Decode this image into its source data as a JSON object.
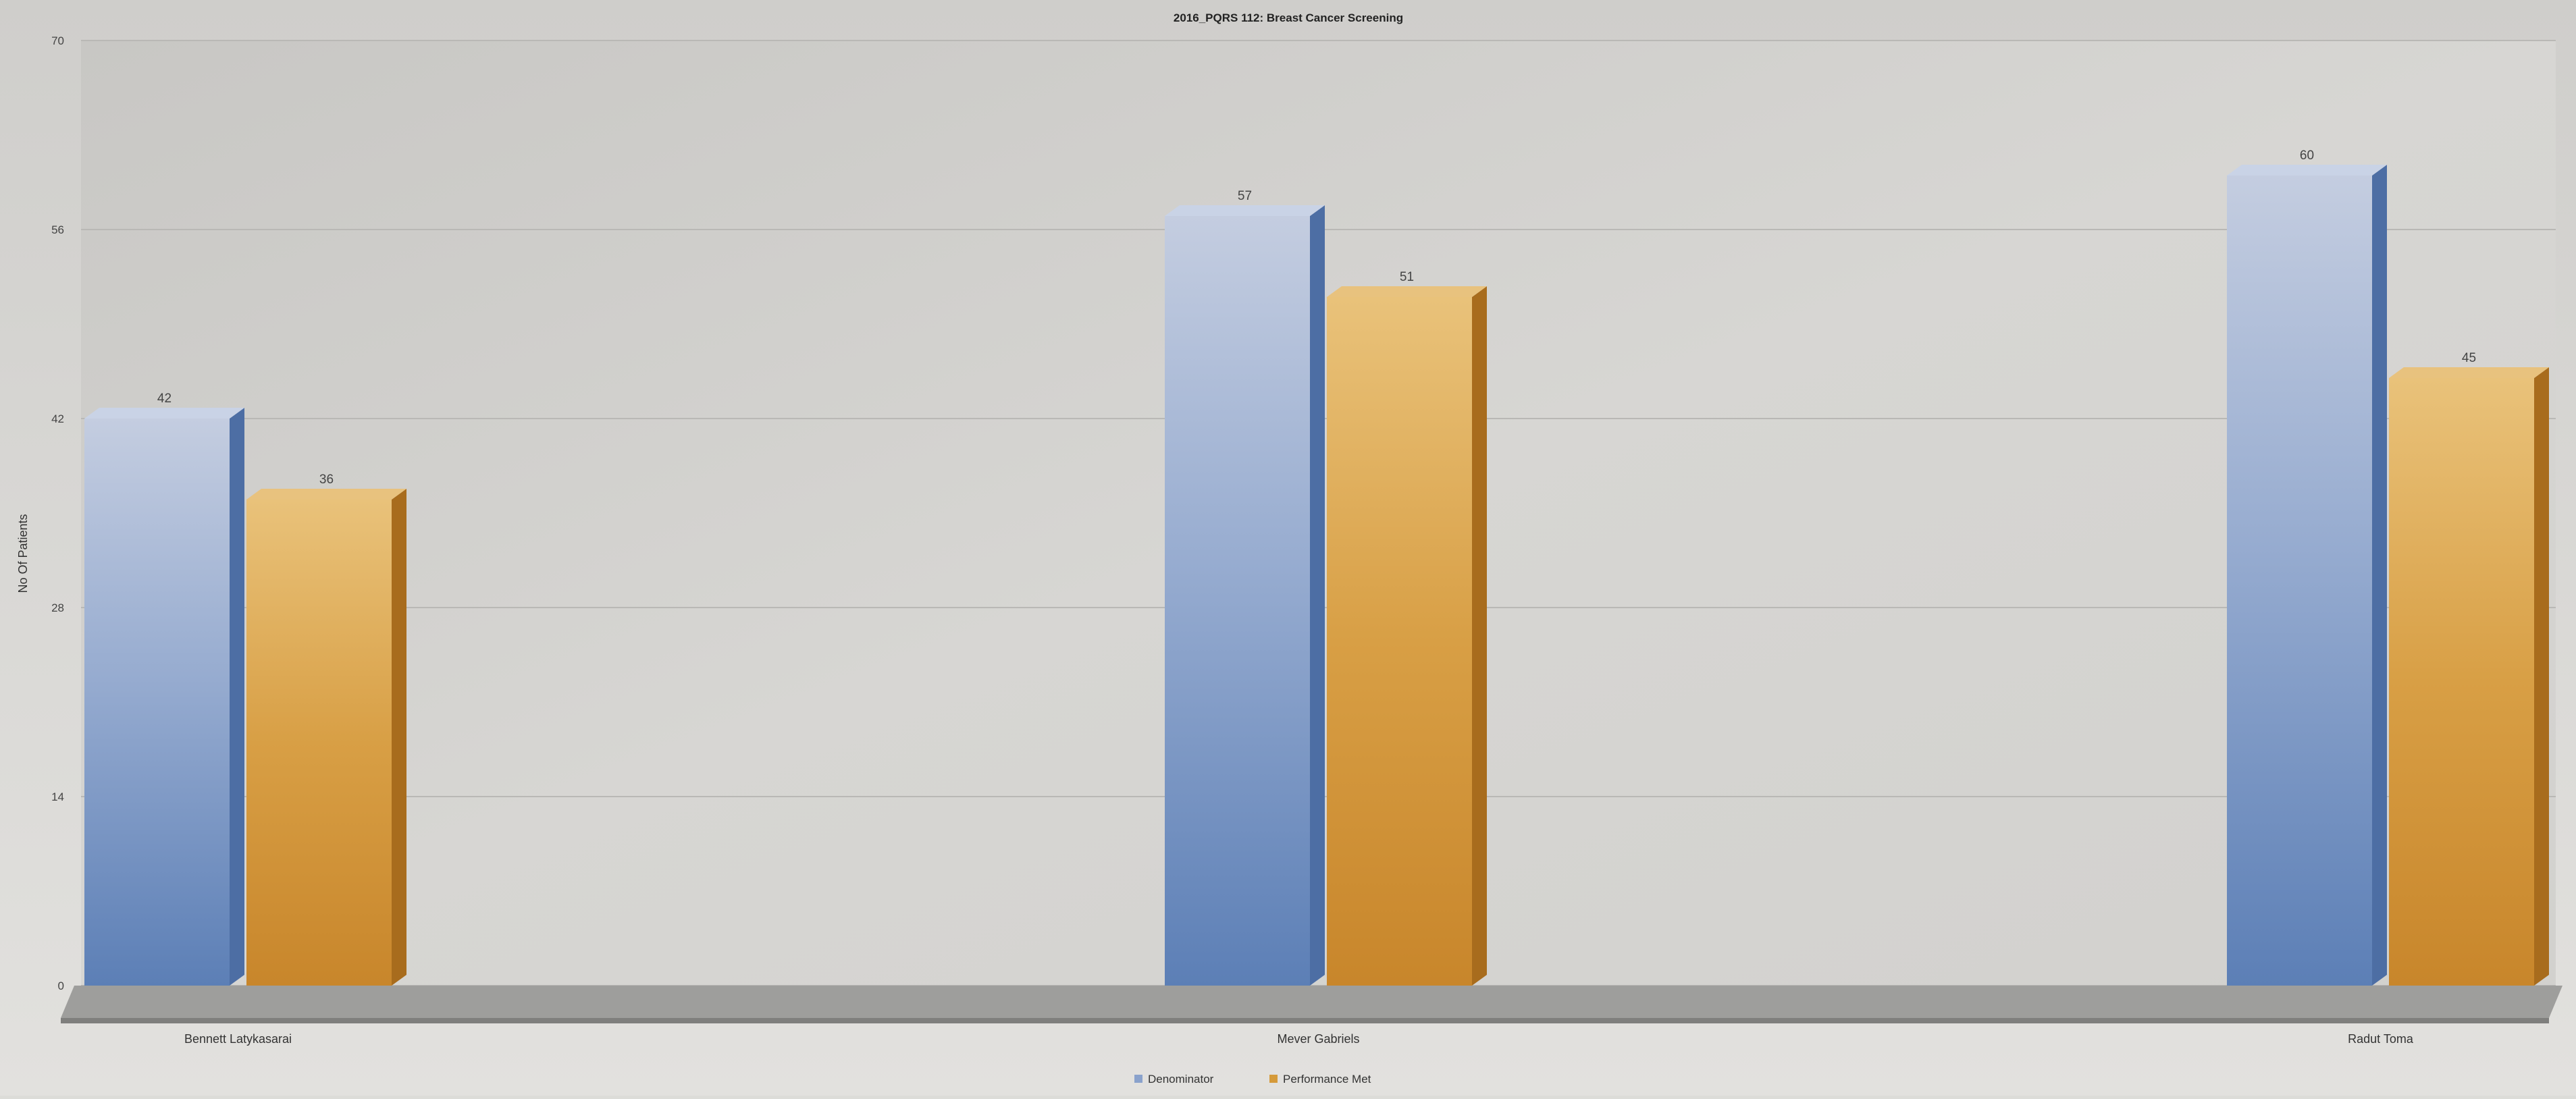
{
  "chart_data": {
    "type": "bar",
    "title": "2016_PQRS 112: Breast Cancer Screening",
    "ylabel": "No Of Patients",
    "xlabel": "",
    "ylim": [
      0,
      70
    ],
    "yticks": [
      0,
      14,
      28,
      42,
      56,
      70
    ],
    "yticks_text": [
      "0",
      "14",
      "28",
      "42",
      "56",
      "70"
    ],
    "grid": true,
    "legend_position": "bottom-center",
    "categories": [
      "Bennett Latykasarai",
      "Mever Gabriels",
      "Radut Toma"
    ],
    "series": [
      {
        "name": "Denominator",
        "values": [
          42,
          57,
          60
        ],
        "color": "#6f8fc0"
      },
      {
        "name": "Performance Met",
        "values": [
          36,
          51,
          45
        ],
        "color": "#d59a3a"
      }
    ]
  }
}
